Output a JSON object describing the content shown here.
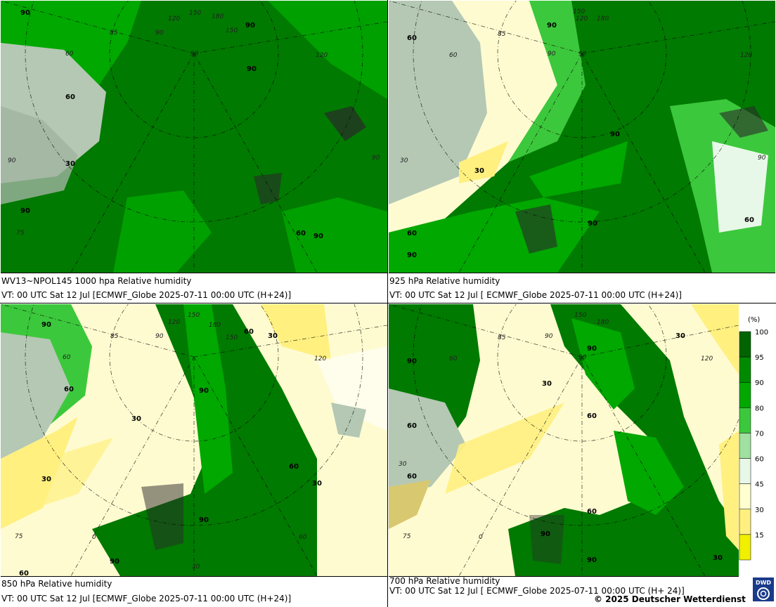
{
  "panels": [
    {
      "id": "p1000",
      "caption_line1": "WV13~NPOL145 1000 hpa Relative humidity",
      "caption_line2": "VT: 00 UTC Sat  12 Jul [ECMWF_Globe 2025-07-11 00:00 UTC  (H+24)]",
      "contour_labels": [
        "90",
        "60",
        "30",
        "90",
        "90",
        "60",
        "90",
        "90"
      ],
      "grid_labels": [
        "120",
        "150",
        "180",
        "150",
        "120",
        "90",
        "85",
        "90",
        "90",
        "75",
        "60",
        "90"
      ]
    },
    {
      "id": "p925",
      "caption_line1": "925 hPa Relative humidity",
      "caption_line2": "VT: 00 UTC Sat  12 Jul [ ECMWF_Globe 2025-07-11 00:00 UTC  (H+24)]",
      "contour_labels": [
        "60",
        "90",
        "90",
        "30",
        "60",
        "90",
        "60",
        "90"
      ],
      "grid_labels": [
        "120",
        "150",
        "180",
        "85",
        "90",
        "120",
        "30",
        "90",
        "90",
        "60"
      ]
    },
    {
      "id": "p850",
      "caption_line1": "850 hPa  Relative humidity",
      "caption_line2": "VT: 00 UTC Sat  12 Jul [ECMWF_Globe 2025-07-11 00:00 UTC  (H+24)]",
      "contour_labels": [
        "90",
        "60",
        "30",
        "60",
        "90",
        "30",
        "30",
        "60",
        "30",
        "90",
        "90",
        "60"
      ],
      "grid_labels": [
        "120",
        "150",
        "180",
        "150",
        "85",
        "90",
        "120",
        "60",
        "75",
        "0",
        "60",
        "30"
      ]
    },
    {
      "id": "p700",
      "caption_line1": "700 hPa Relative humidity",
      "caption_line2": "VT: 00 UTC Sat  12 Jul [ ECMWF_Globe 2025-07-11 00:00 UTC  (H+ 24)]",
      "contour_labels": [
        "90",
        "90",
        "30",
        "60",
        "30",
        "60",
        "60",
        "90",
        "60",
        "90",
        "30"
      ],
      "grid_labels": [
        "150",
        "180",
        "85",
        "90",
        "120",
        "60",
        "30",
        "90",
        "75",
        "0"
      ]
    }
  ],
  "legend": {
    "unit": "(%)",
    "ticks": [
      "100",
      "95",
      "90",
      "80",
      "70",
      "60",
      "45",
      "30",
      "15"
    ],
    "colors": [
      "#006400",
      "#008a00",
      "#00a800",
      "#3cc83c",
      "#a0e0a0",
      "#e8f8e8",
      "#ffffd0",
      "#fff080",
      "#f0f000"
    ]
  },
  "credit": "© 2025 Deutscher Wetterdienst",
  "logo_text": "DWD"
}
